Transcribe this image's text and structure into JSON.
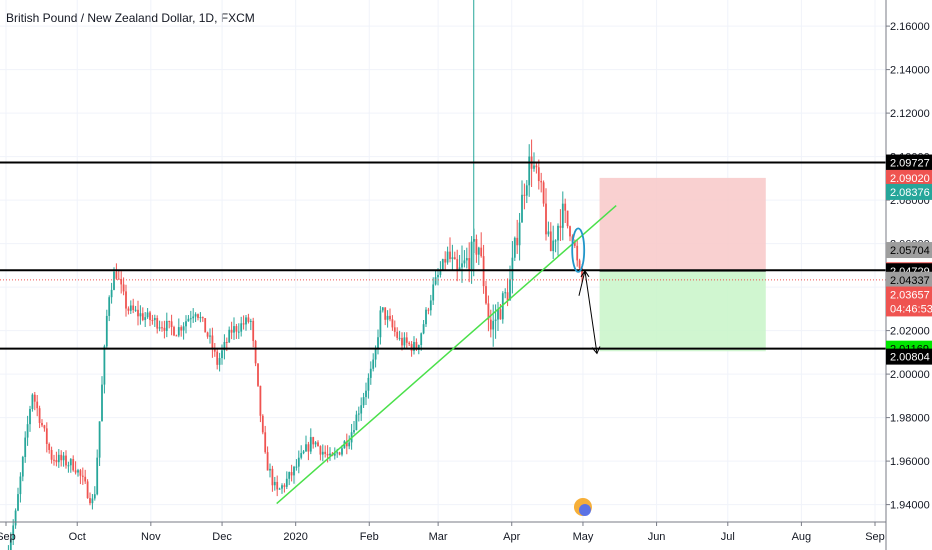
{
  "title": "British Pound / New Zealand Dollar, 1D, FXCM",
  "colors": {
    "up": "#26a69a",
    "down": "#ef5350",
    "trendline": "#4ae04a",
    "level": "#000000",
    "stop_zone": "#f8c8c8",
    "target_zone": "#c8f5c8",
    "ellipse": "#2196c9",
    "arrow": "#000000"
  },
  "chart_data": {
    "type": "candlestick",
    "title": "British Pound / New Zealand Dollar, 1D, FXCM",
    "ylim": [
      1.932,
      2.172
    ],
    "y_ticks": [
      "2.16000",
      "2.14000",
      "2.12000",
      "2.10000",
      "2.08000",
      "2.06000",
      "2.04000",
      "2.02000",
      "2.00000",
      "1.98000",
      "1.96000",
      "1.94000"
    ],
    "x_labels": [
      "Sep",
      "Oct",
      "Nov",
      "Dec",
      "2020",
      "Feb",
      "Mar",
      "Apr",
      "May",
      "Jun",
      "Jul",
      "Aug",
      "Sep"
    ],
    "horizontal_levels": [
      2.09727,
      2.04774,
      2.01169
    ],
    "trendline": {
      "from": [
        "2019-12-24",
        1.9405
      ],
      "to": [
        "2020-05-15",
        2.0775
      ]
    },
    "price_tags": [
      {
        "value": "2.09727",
        "price": 2.09727,
        "bg": "#000000",
        "fg": "#ffffff"
      },
      {
        "value": "2.09020",
        "price": 2.0902,
        "bg": "#ef5350",
        "fg": "#ffffff"
      },
      {
        "value": "2.08376",
        "price": 2.08376,
        "bg": "#26a69a",
        "fg": "#ffffff"
      },
      {
        "value": "2.05704",
        "price": 2.05704,
        "bg": "#9e9e9e",
        "fg": "#000000"
      },
      {
        "value": "2.04774",
        "price": 2.04774,
        "bg": "#ef5350",
        "fg": "#ffffff"
      },
      {
        "value": "2.04729",
        "price": 2.04729,
        "bg": "#000000",
        "fg": "#ffffff"
      },
      {
        "value": "2.04337",
        "price": 2.04337,
        "bg": "#9e9e9e",
        "fg": "#000000"
      },
      {
        "value": "2.03657",
        "price": 2.03657,
        "bg": "#ef5350",
        "fg": "#ffffff"
      },
      {
        "value": "04:46:53",
        "price": 2.0302,
        "bg": "#ef5350",
        "fg": "#ffffff"
      },
      {
        "value": "2.01169",
        "price": 2.01169,
        "bg": "#00e600",
        "fg": "#000000"
      },
      {
        "value": "2.00804",
        "price": 2.00804,
        "bg": "#000000",
        "fg": "#ffffff"
      }
    ],
    "last_price": 2.0433,
    "position": {
      "stop": 2.0902,
      "entry": 2.04729,
      "target": 2.0105
    },
    "annotations": {
      "ellipse_price": [
        2.047,
        2.067
      ],
      "arrow_from": 2.0475,
      "arrow_to": 2.0095
    },
    "keypoints": [
      [
        "2019-09-01",
        1.915
      ],
      [
        "2019-09-05",
        1.935
      ],
      [
        "2019-09-12",
        1.992
      ],
      [
        "2019-09-20",
        1.962
      ],
      [
        "2019-09-30",
        1.958
      ],
      [
        "2019-10-08",
        1.94
      ],
      [
        "2019-10-14",
        2.035
      ],
      [
        "2019-10-17",
        2.048
      ],
      [
        "2019-10-22",
        2.03
      ],
      [
        "2019-11-01",
        2.025
      ],
      [
        "2019-11-12",
        2.02
      ],
      [
        "2019-11-20",
        2.03
      ],
      [
        "2019-11-26",
        2.015
      ],
      [
        "2019-11-29",
        2.005
      ],
      [
        "2019-12-05",
        2.02
      ],
      [
        "2019-12-13",
        2.025
      ],
      [
        "2019-12-19",
        1.962
      ],
      [
        "2019-12-24",
        1.945
      ],
      [
        "2019-12-31",
        1.955
      ],
      [
        "2020-01-08",
        1.97
      ],
      [
        "2020-01-16",
        1.96
      ],
      [
        "2020-01-24",
        1.972
      ],
      [
        "2020-02-03",
        2.005
      ],
      [
        "2020-02-06",
        2.03
      ],
      [
        "2020-02-14",
        2.015
      ],
      [
        "2020-02-21",
        2.012
      ],
      [
        "2020-02-28",
        2.04
      ],
      [
        "2020-03-05",
        2.055
      ],
      [
        "2020-03-09",
        2.045
      ],
      [
        "2020-03-18",
        2.06
      ],
      [
        "2020-03-23",
        2.02
      ],
      [
        "2020-03-31",
        2.04
      ],
      [
        "2020-04-06",
        2.085
      ],
      [
        "2020-04-09",
        2.1
      ],
      [
        "2020-04-14",
        2.08
      ],
      [
        "2020-04-17",
        2.055
      ],
      [
        "2020-04-22",
        2.075
      ],
      [
        "2020-04-27",
        2.062
      ],
      [
        "2020-04-29",
        2.048
      ],
      [
        "2020-05-01",
        2.0433
      ]
    ]
  }
}
